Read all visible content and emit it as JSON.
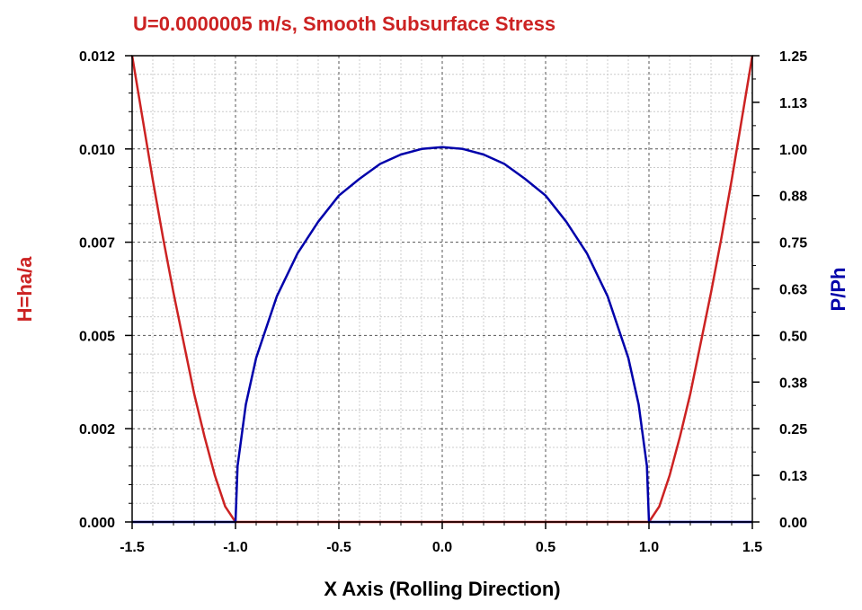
{
  "chart_data": {
    "type": "line",
    "title": "U=0.0000005 m/s, Smooth Subsurface Stress",
    "xlabel": "X Axis (Rolling Direction)",
    "ylabel_left": "H=ha/a",
    "ylabel_right": "P/Ph",
    "xlim": [
      -1.5,
      1.5
    ],
    "ylim_left": [
      0,
      0.012
    ],
    "ylim_right": [
      0,
      1.25
    ],
    "x_ticks": [
      "-1.5",
      "-1.0",
      "-0.5",
      "0.0",
      "0.5",
      "1.0",
      "1.5"
    ],
    "y_left_ticks": [
      "0.000",
      "0.002",
      "0.005",
      "0.007",
      "0.010",
      "0.012"
    ],
    "y_right_ticks": [
      "0.00",
      "0.13",
      "0.25",
      "0.38",
      "0.50",
      "0.63",
      "0.75",
      "0.88",
      "1.00",
      "1.13",
      "1.25"
    ],
    "grid": true,
    "colors": {
      "title": "#cc2222",
      "h_series": "#cc2222",
      "p_series": "#0000aa",
      "left_label": "#cc2222",
      "right_label": "#0000aa"
    },
    "series": [
      {
        "axis": "left",
        "x": [
          -1.5,
          -1.45,
          -1.4,
          -1.35,
          -1.3,
          -1.25,
          -1.2,
          -1.15,
          -1.1,
          -1.05,
          -1.0,
          -0.5,
          0.0,
          0.5,
          1.0,
          1.05,
          1.1,
          1.15,
          1.2,
          1.25,
          1.3,
          1.35,
          1.4,
          1.45,
          1.5
        ],
        "values": [
          0.012,
          0.0104,
          0.0088,
          0.0073,
          0.0059,
          0.0046,
          0.0033,
          0.0022,
          0.0012,
          0.0004,
          0.0,
          0.0,
          0.0,
          0.0,
          0.0,
          0.0004,
          0.0012,
          0.0022,
          0.0033,
          0.0046,
          0.0059,
          0.0073,
          0.0088,
          0.0104,
          0.012
        ]
      },
      {
        "axis": "right",
        "x": [
          -1.5,
          -1.0,
          -0.99,
          -0.95,
          -0.9,
          -0.8,
          -0.7,
          -0.6,
          -0.5,
          -0.4,
          -0.3,
          -0.2,
          -0.1,
          0.0,
          0.1,
          0.2,
          0.3,
          0.4,
          0.5,
          0.6,
          0.7,
          0.8,
          0.9,
          0.95,
          0.99,
          1.0,
          1.5
        ],
        "values": [
          0.0,
          0.0,
          0.15,
          0.315,
          0.44,
          0.605,
          0.72,
          0.805,
          0.875,
          0.92,
          0.96,
          0.985,
          1.0,
          1.005,
          1.0,
          0.985,
          0.96,
          0.92,
          0.875,
          0.805,
          0.72,
          0.605,
          0.44,
          0.315,
          0.15,
          0.0,
          0.0
        ]
      }
    ]
  }
}
